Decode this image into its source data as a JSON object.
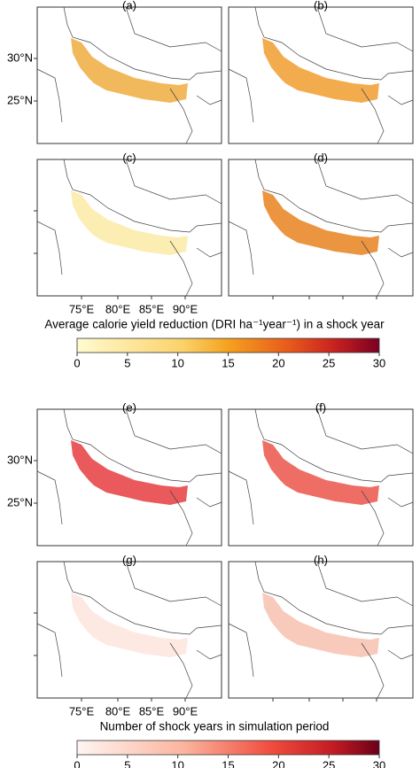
{
  "groups": [
    {
      "panels": [
        "(a)",
        "(b)",
        "(c)",
        "(d)"
      ],
      "lat_labels": [
        "30°N",
        "25°N"
      ],
      "lon_labels": [
        "75°E",
        "80°E",
        "85°E",
        "90°E"
      ],
      "colorbar": {
        "title": "Average calorie yield reduction (DRI ha⁻¹year⁻¹) in a shock year",
        "lim": [
          0,
          30
        ],
        "ticks": [
          0,
          5,
          10,
          15,
          20,
          25,
          30
        ]
      }
    },
    {
      "panels": [
        "(e)",
        "(f)",
        "(g)",
        "(h)"
      ],
      "lat_labels": [
        "30°N",
        "25°N"
      ],
      "lon_labels": [
        "75°E",
        "80°E",
        "85°E",
        "90°E"
      ],
      "colorbar": {
        "title": "Number of shock years in simulation period",
        "lim": [
          0,
          30
        ],
        "ticks": [
          0,
          5,
          10,
          15,
          20,
          25,
          30
        ]
      }
    }
  ]
}
